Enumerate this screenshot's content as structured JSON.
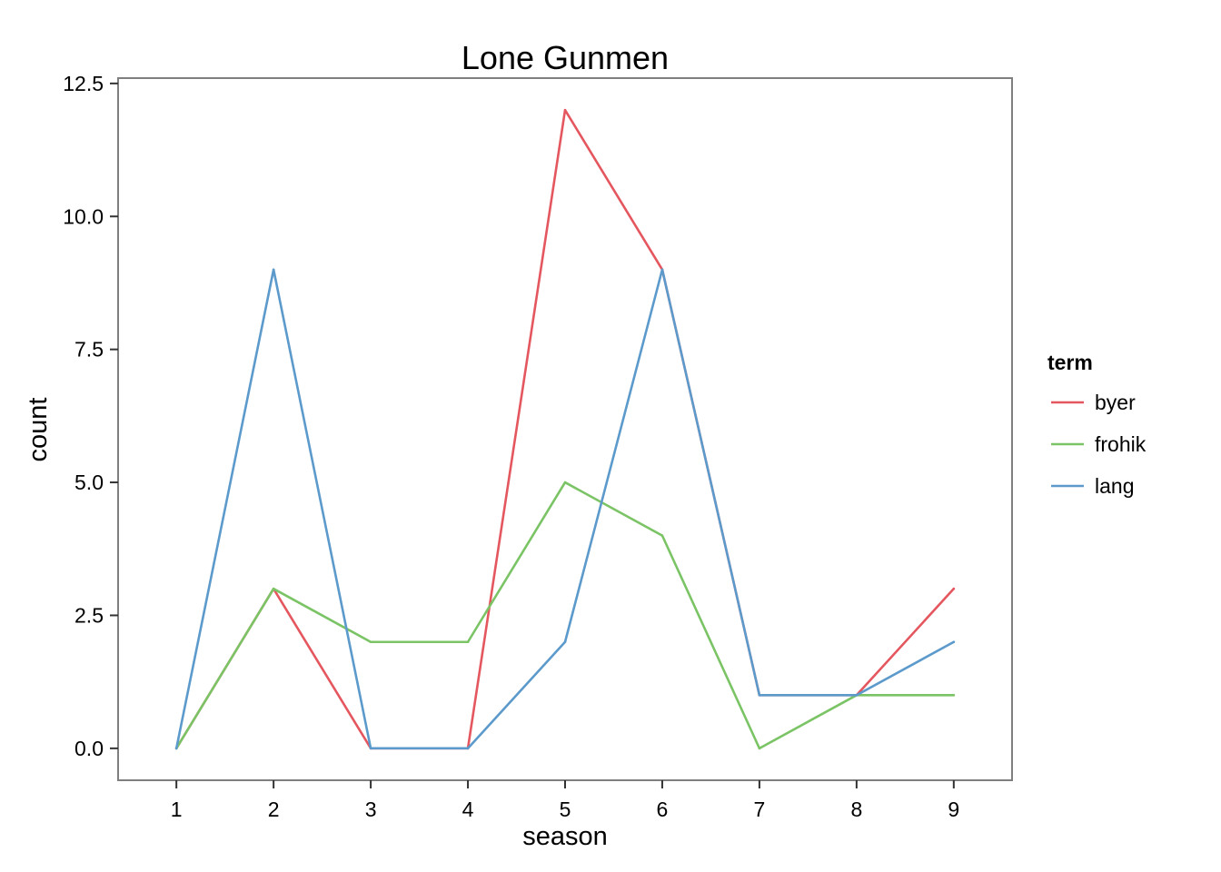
{
  "chart_data": {
    "type": "line",
    "title": "Lone Gunmen",
    "xlabel": "season",
    "ylabel": "count",
    "x": [
      1,
      2,
      3,
      4,
      5,
      6,
      7,
      8,
      9
    ],
    "x_tick_labels": [
      "1",
      "2",
      "3",
      "4",
      "5",
      "6",
      "7",
      "8",
      "9"
    ],
    "xlim": [
      0.4,
      9.6
    ],
    "ylim": [
      -0.6,
      12.6
    ],
    "y_ticks": [
      0.0,
      2.5,
      5.0,
      7.5,
      10.0,
      12.5
    ],
    "y_tick_labels": [
      "0.0",
      "2.5",
      "5.0",
      "7.5",
      "10.0",
      "12.5"
    ],
    "grid": false,
    "legend": {
      "title": "term",
      "placement": "right"
    },
    "series": [
      {
        "name": "byer",
        "color": "#E4575F",
        "values": [
          0,
          3,
          0,
          0,
          12,
          9,
          1,
          1,
          3
        ]
      },
      {
        "name": "frohik",
        "color": "#7BC465",
        "values": [
          0,
          3,
          2,
          2,
          5,
          4,
          0,
          1,
          1
        ]
      },
      {
        "name": "lang",
        "color": "#5C9ACB",
        "values": [
          0,
          9,
          0,
          0,
          2,
          9,
          1,
          1,
          2
        ]
      }
    ]
  }
}
